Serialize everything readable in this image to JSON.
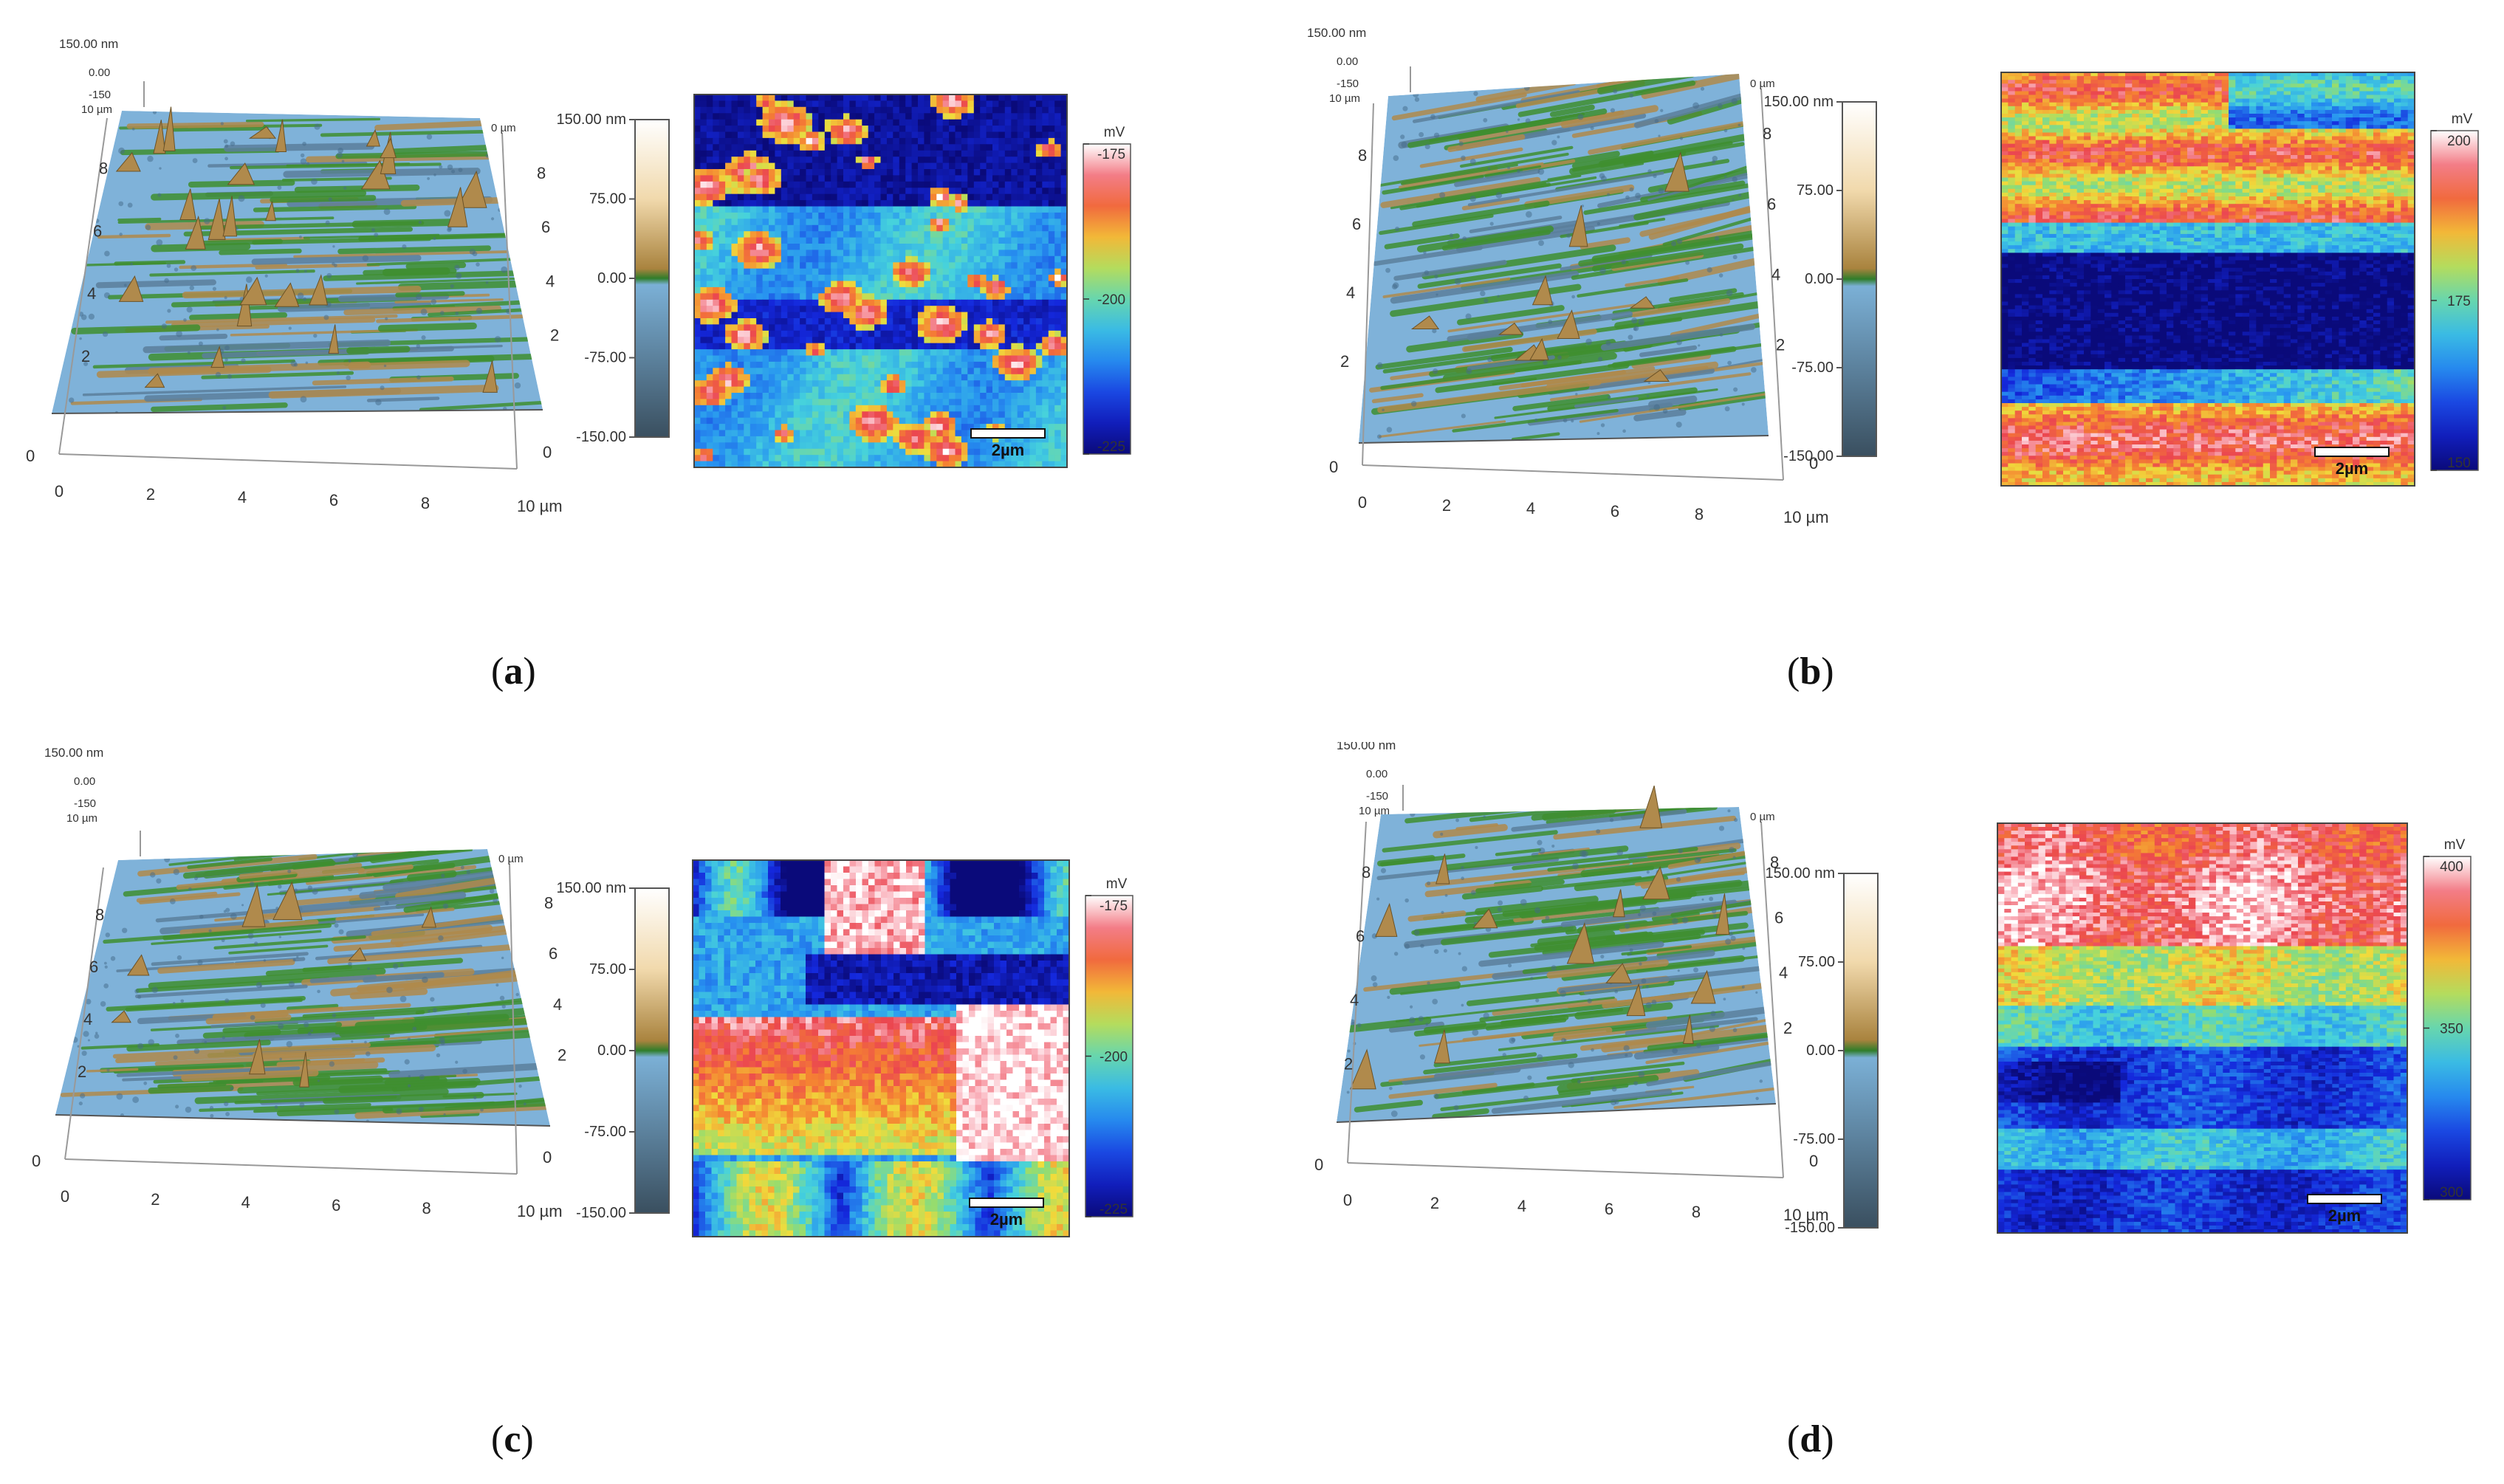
{
  "panels": [
    {
      "id": "a",
      "caption_letter": "a",
      "height_max_label": "150.00 nm",
      "height_zero_label": "0.00",
      "height_neg_label": "-150",
      "y_max_label": "10 µm",
      "x_ticks": [
        "0",
        "2",
        "4",
        "6",
        "8",
        "10 µm"
      ],
      "y_ticks": [
        "2",
        "4",
        "6",
        "8"
      ],
      "right_ticks": [
        "2",
        "4",
        "6",
        "8"
      ],
      "corner_zero_left": "0",
      "corner_zero_right": "0",
      "height_colorbar_ticks": [
        "150.00 nm",
        "75.00",
        "0.00",
        "-75.00",
        "-150.00"
      ],
      "potential_unit": "mV",
      "potential_ticks": [
        "-175",
        "-200",
        "-225"
      ],
      "scale_bar": "2µm",
      "potential_style": "blotchy"
    },
    {
      "id": "b",
      "caption_letter": "b",
      "height_max_label": "150.00 nm",
      "height_zero_label": "0.00",
      "height_neg_label": "-150",
      "y_max_label": "10 µm",
      "x_ticks": [
        "0",
        "2",
        "4",
        "6",
        "8",
        "10 µm"
      ],
      "y_ticks": [
        "2",
        "4",
        "6",
        "8"
      ],
      "right_ticks": [
        "2",
        "4",
        "6",
        "8"
      ],
      "corner_zero_left": "0",
      "corner_zero_right": "0",
      "height_colorbar_ticks": [
        "150.00 nm",
        "75.00",
        "0.00",
        "-75.00",
        "-150.00"
      ],
      "potential_unit": "mV",
      "potential_ticks": [
        "200",
        "175",
        "150"
      ],
      "scale_bar": "2µm",
      "potential_style": "banded"
    },
    {
      "id": "c",
      "caption_letter": "c",
      "height_max_label": "150.00 nm",
      "height_zero_label": "0.00",
      "height_neg_label": "-150",
      "y_max_label": "10 µm",
      "x_ticks": [
        "0",
        "2",
        "4",
        "6",
        "8",
        "10 µm"
      ],
      "y_ticks": [
        "2",
        "4",
        "6",
        "8"
      ],
      "right_ticks": [
        "2",
        "4",
        "6",
        "8"
      ],
      "corner_zero_left": "0",
      "corner_zero_right": "0",
      "height_colorbar_ticks": [
        "150.00 nm",
        "75.00",
        "0.00",
        "-75.00",
        "-150.00"
      ],
      "potential_unit": "mV",
      "potential_ticks": [
        "-175",
        "-200",
        "-225"
      ],
      "scale_bar": "2µm",
      "potential_style": "patchy"
    },
    {
      "id": "d",
      "caption_letter": "d",
      "height_max_label": "150.00 nm",
      "height_zero_label": "0.00",
      "height_neg_label": "-150",
      "y_max_label": "10 µm",
      "x_ticks": [
        "0",
        "2",
        "4",
        "6",
        "8",
        "10 µm"
      ],
      "y_ticks": [
        "2",
        "4",
        "6",
        "8"
      ],
      "right_ticks": [
        "2",
        "4",
        "6",
        "8"
      ],
      "corner_zero_left": "0",
      "corner_zero_right": "0",
      "height_colorbar_ticks": [
        "150.00 nm",
        "75.00",
        "0.00",
        "-75.00",
        "-150.00"
      ],
      "potential_unit": "mV",
      "potential_ticks": [
        "400",
        "350",
        "300"
      ],
      "scale_bar": "2µm",
      "potential_style": "layered"
    }
  ],
  "colors": {
    "surface_blue": "#7fb2d9",
    "surface_green": "#3f8f2f",
    "surface_brown": "#b08a4c",
    "potential_low": "#0a0a7a",
    "potential_high": "#ffffff"
  }
}
